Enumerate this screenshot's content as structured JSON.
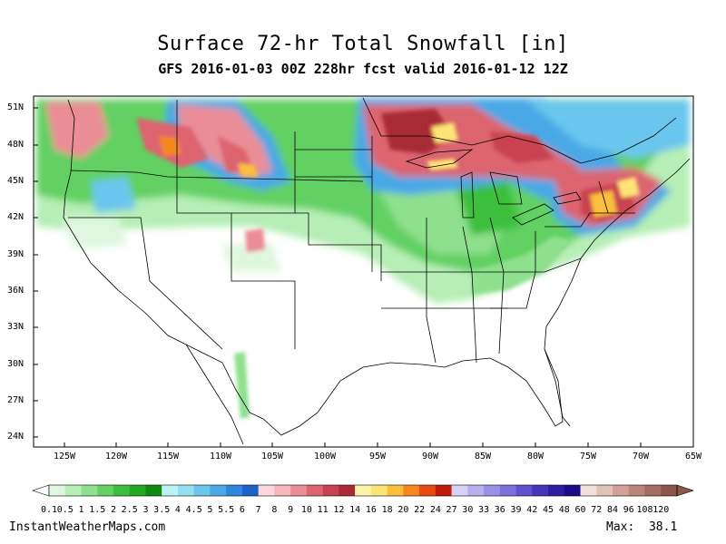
{
  "header": {
    "title": "Surface 72-hr Total Snowfall [in]",
    "subtitle": "GFS 2016-01-03 00Z 228hr fcst valid 2016-01-12 12Z"
  },
  "lat_labels": [
    "51N",
    "48N",
    "45N",
    "42N",
    "39N",
    "36N",
    "33N",
    "30N",
    "27N",
    "24N"
  ],
  "lon_labels": [
    "125W",
    "120W",
    "115W",
    "110W",
    "105W",
    "100W",
    "95W",
    "90W",
    "85W",
    "80W",
    "75W",
    "70W",
    "65W"
  ],
  "colorbar": {
    "labels": [
      "0.1",
      "0.5",
      "1",
      "1.5",
      "2",
      "2.5",
      "3",
      "3.5",
      "4",
      "4.5",
      "5",
      "5.5",
      "6",
      "7",
      "8",
      "9",
      "10",
      "11",
      "12",
      "14",
      "16",
      "18",
      "20",
      "22",
      "24",
      "27",
      "30",
      "33",
      "36",
      "39",
      "42",
      "45",
      "48",
      "60",
      "72",
      "84",
      "96",
      "108",
      "120"
    ],
    "colors": [
      "#dff7df",
      "#b6eeb6",
      "#8ee08e",
      "#62d062",
      "#3cbf3c",
      "#22a822",
      "#0e8a0e",
      "#bdf2f5",
      "#94def0",
      "#6ac6ec",
      "#4aa8e6",
      "#2f86db",
      "#1d62c8",
      "#fbd8dc",
      "#f6b4bb",
      "#ea8d95",
      "#dc6570",
      "#c9434f",
      "#a82a35",
      "#fef3a8",
      "#fde477",
      "#fbbf3c",
      "#f6861f",
      "#e64a12",
      "#c11a0c",
      "#d7d2f4",
      "#b7aff0",
      "#9a8fe8",
      "#7c70dc",
      "#5f52cc",
      "#4536b9",
      "#2e1fa0",
      "#1c0c86",
      "#f1e1dc",
      "#e2c1b6",
      "#cfa295",
      "#bb8677",
      "#a46d5f",
      "#8c574a"
    ]
  },
  "footer": {
    "source": "InstantWeatherMaps.com",
    "max_label": "Max:",
    "max_value": "38.1"
  }
}
